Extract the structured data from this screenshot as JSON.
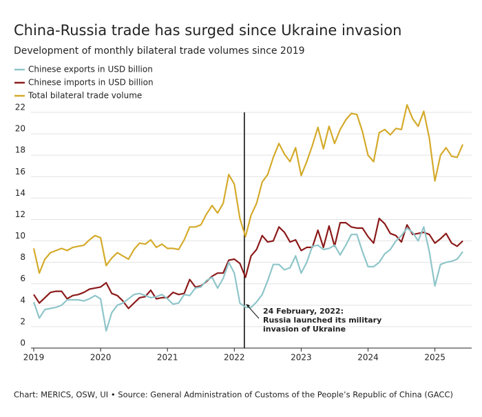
{
  "chart_data": {
    "type": "line",
    "title": "China-Russia trade has surged since Ukraine invasion",
    "subtitle": "Development of monthly bilateral trade volumes since 2019",
    "source": "Chart: MERICS, OSW, UI • Source: General Administration of Customs of the People’s Republic of China (GACC)",
    "x": [
      2019,
      2019.083,
      2019.167,
      2019.25,
      2019.333,
      2019.417,
      2019.5,
      2019.583,
      2019.667,
      2019.75,
      2019.833,
      2019.917,
      2020,
      2020.083,
      2020.167,
      2020.25,
      2020.333,
      2020.417,
      2020.5,
      2020.583,
      2020.667,
      2020.75,
      2020.833,
      2020.917,
      2021,
      2021.083,
      2021.167,
      2021.25,
      2021.333,
      2021.417,
      2021.5,
      2021.583,
      2021.667,
      2021.75,
      2021.833,
      2021.917,
      2022,
      2022.083,
      2022.167,
      2022.25,
      2022.333,
      2022.417,
      2022.5,
      2022.583,
      2022.667,
      2022.75,
      2022.833,
      2022.917,
      2023,
      2023.083,
      2023.167,
      2023.25,
      2023.333,
      2023.417,
      2023.5,
      2023.583,
      2023.667,
      2023.75,
      2023.833,
      2023.917,
      2024,
      2024.083,
      2024.167,
      2024.25,
      2024.333,
      2024.417,
      2024.5,
      2024.583,
      2024.667,
      2024.75,
      2024.833,
      2024.917,
      2025,
      2025.083,
      2025.167,
      2025.25,
      2025.333,
      2025.417
    ],
    "series": [
      {
        "name": "Chinese exports in USD billion",
        "color": "#8ec5c9",
        "values": [
          4.3,
          2.8,
          3.6,
          3.7,
          3.8,
          4.0,
          4.5,
          4.5,
          4.5,
          4.4,
          4.6,
          4.9,
          4.6,
          1.6,
          3.3,
          4.0,
          4.2,
          4.6,
          5.0,
          5.1,
          4.9,
          4.7,
          4.8,
          5.0,
          4.6,
          4.1,
          4.2,
          5.0,
          4.9,
          5.6,
          5.7,
          6.3,
          6.6,
          5.6,
          6.5,
          8.0,
          7.0,
          4.2,
          3.8,
          3.8,
          4.3,
          5.0,
          6.3,
          7.8,
          7.8,
          7.3,
          7.5,
          8.6,
          7.0,
          8.0,
          9.5,
          9.6,
          9.2,
          9.3,
          9.6,
          8.7,
          9.6,
          10.6,
          10.6,
          9.0,
          7.6,
          7.6,
          8.0,
          8.8,
          9.2,
          10.0,
          10.5,
          11.2,
          10.8,
          10.0,
          11.3,
          9.0,
          5.8,
          7.8,
          8.0,
          8.1,
          8.3,
          9.0
        ]
      },
      {
        "name": "Chinese imports in USD billion",
        "color": "#8b1a1a",
        "values": [
          5.0,
          4.2,
          4.7,
          5.2,
          5.3,
          5.3,
          4.6,
          4.9,
          5.0,
          5.2,
          5.5,
          5.6,
          5.7,
          6.1,
          5.1,
          4.9,
          4.4,
          3.7,
          4.2,
          4.7,
          4.8,
          5.4,
          4.6,
          4.7,
          4.7,
          5.2,
          5.0,
          5.1,
          6.4,
          5.7,
          5.8,
          6.2,
          6.7,
          7.0,
          7.0,
          8.2,
          8.3,
          7.9,
          6.6,
          8.6,
          9.2,
          10.5,
          9.9,
          10.0,
          11.3,
          10.8,
          9.9,
          10.1,
          9.1,
          9.4,
          9.4,
          11.0,
          9.4,
          11.4,
          9.5,
          11.7,
          11.7,
          11.3,
          11.2,
          11.2,
          10.4,
          9.8,
          12.1,
          11.6,
          10.7,
          10.5,
          9.9,
          11.5,
          10.6,
          10.7,
          10.8,
          10.6,
          9.8,
          10.2,
          10.7,
          9.8,
          9.5,
          10.0
        ]
      },
      {
        "name": "Total bilateral trade volume",
        "color": "#d4aa2a",
        "values": [
          9.3,
          7.0,
          8.3,
          8.9,
          9.1,
          9.3,
          9.1,
          9.4,
          9.5,
          9.6,
          10.1,
          10.5,
          10.3,
          7.7,
          8.4,
          8.9,
          8.6,
          8.3,
          9.2,
          9.8,
          9.7,
          10.1,
          9.4,
          9.7,
          9.3,
          9.3,
          9.2,
          10.1,
          11.3,
          11.3,
          11.5,
          12.5,
          13.3,
          12.6,
          13.5,
          16.2,
          15.3,
          12.1,
          10.4,
          12.4,
          13.5,
          15.5,
          16.2,
          17.8,
          19.1,
          18.1,
          17.4,
          18.7,
          16.1,
          17.4,
          18.9,
          20.6,
          18.6,
          20.7,
          19.1,
          20.4,
          21.3,
          21.9,
          21.8,
          20.2,
          18.0,
          17.4,
          20.1,
          20.4,
          19.9,
          20.5,
          20.4,
          22.7,
          21.4,
          20.7,
          22.1,
          19.6,
          15.6,
          18.0,
          18.7,
          17.9,
          17.8,
          19.0
        ]
      }
    ],
    "annotation": {
      "x": 2022.15,
      "text": [
        "24 February, 2022:",
        "Russia launched its military",
        "invasion of Ukraine"
      ]
    },
    "xlim": [
      2019,
      2025.55
    ],
    "xticks": [
      2019,
      2020,
      2021,
      2022,
      2023,
      2024,
      2025
    ],
    "ylim": [
      0,
      22
    ],
    "yticks": [
      0,
      2,
      4,
      6,
      8,
      10,
      12,
      14,
      16,
      18,
      20,
      22
    ],
    "grid": true
  }
}
